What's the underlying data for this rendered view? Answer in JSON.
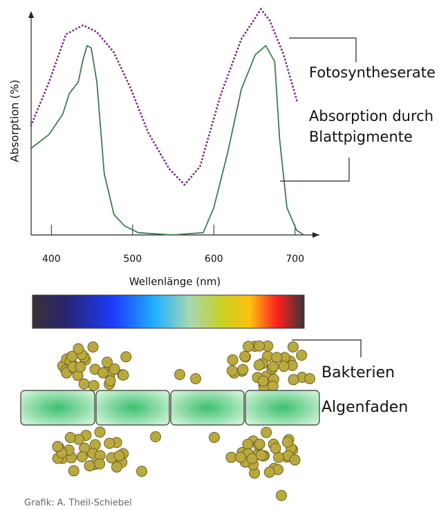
{
  "chart_data": {
    "type": "line",
    "y_label": "Absorption (%)",
    "x_label": "Wellenlänge (nm)",
    "xlim": [
      375,
      730
    ],
    "xticks": [
      400,
      500,
      600,
      700
    ],
    "ylim": [
      0,
      100
    ],
    "series": [
      {
        "name": "Fotosyntheserate",
        "color": "#7b3a8c",
        "style": "dotted",
        "x": [
          375,
          397,
          418,
          439,
          456,
          477,
          498,
          519,
          545,
          564,
          583,
          608,
          634,
          658,
          669,
          686,
          703
        ],
        "values": [
          48,
          67,
          88,
          92,
          89,
          80,
          64,
          45,
          29,
          22,
          30,
          61,
          86,
          99,
          94,
          79,
          58
        ]
      },
      {
        "name": "Absorption durch Blattpigmente",
        "color": "#3f7a4f",
        "style": "solid",
        "x": [
          375,
          397,
          414,
          422,
          433,
          439,
          444,
          449,
          456,
          465,
          477,
          490,
          507,
          549,
          587,
          600,
          617,
          634,
          651,
          664,
          675,
          681,
          690,
          702,
          711
        ],
        "values": [
          38,
          44,
          53,
          62,
          67,
          77,
          83,
          82,
          67,
          27,
          9,
          4,
          1,
          0,
          1,
          12,
          36,
          64,
          79,
          83,
          76,
          42,
          12,
          2,
          0
        ]
      }
    ]
  },
  "labels": {
    "bacteria": "Bakterien",
    "algae": "Algenfaden"
  },
  "credit": "Grafik: A. Theil-Schiebel"
}
